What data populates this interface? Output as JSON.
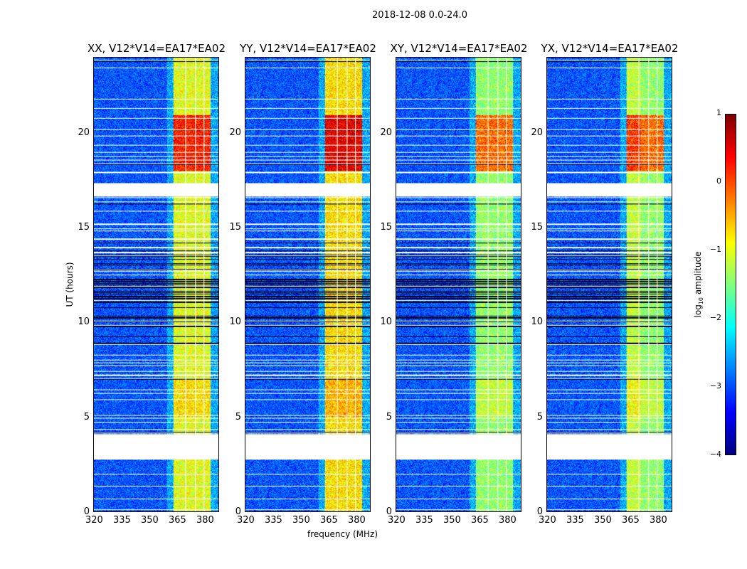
{
  "chart_data": {
    "type": "heatmap",
    "title": "2018-12-08 0.0-24.0",
    "xlabel": "frequency (MHz)",
    "ylabel": "UT (hours)",
    "xlim": [
      320,
      384
    ],
    "ylim": [
      0,
      24
    ],
    "xticks": [
      320,
      335,
      350,
      365,
      380
    ],
    "yticks": [
      0,
      5,
      10,
      15,
      20
    ],
    "panels": [
      {
        "title": "XX, V12*V14=EA17*EA02"
      },
      {
        "title": "YY, V12*V14=EA17*EA02"
      },
      {
        "title": "XY, V12*V14=EA17*EA02"
      },
      {
        "title": "YX, V12*V14=EA17*EA02"
      }
    ],
    "rfi_band_mhz": [
      360.5,
      380
    ],
    "no_data_hours": [
      [
        2.75,
        4.1
      ],
      [
        16.7,
        17.4
      ]
    ],
    "colorbar": {
      "label_prefix": "log",
      "label_sub": "10",
      "label_suffix": " amplitude",
      "colormap": "jet",
      "range": [
        -4,
        1
      ],
      "ticks": [
        "1",
        "0",
        "−1",
        "−2",
        "−3",
        "−4"
      ]
    }
  }
}
